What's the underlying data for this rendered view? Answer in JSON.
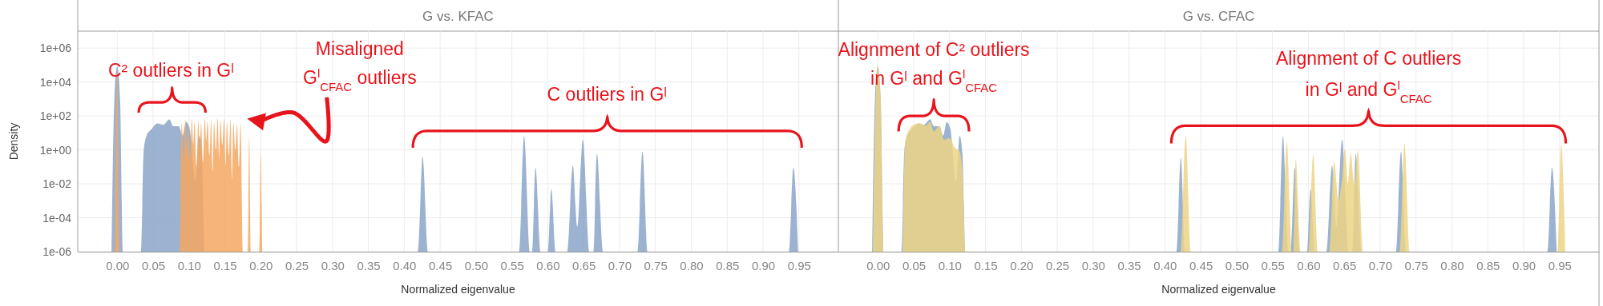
{
  "chart_data": [
    {
      "type": "area",
      "title": "G vs. KFAC",
      "xlabel": "Normalized eigenvalue",
      "ylabel": "Density",
      "log": "y",
      "grid": true,
      "xlim": [
        -0.055,
        1.005
      ],
      "ylim": [
        1e-06,
        10000000.0
      ],
      "xticks": [
        {
          "value": 0,
          "label": "0.00"
        },
        {
          "value": 0.05,
          "label": "0.05"
        },
        {
          "value": 0.1,
          "label": "0.10"
        },
        {
          "value": 0.15,
          "label": "0.15"
        },
        {
          "value": 0.2,
          "label": "0.20"
        },
        {
          "value": 0.25,
          "label": "0.25"
        },
        {
          "value": 0.3,
          "label": "0.30"
        },
        {
          "value": 0.35,
          "label": "0.35"
        },
        {
          "value": 0.4,
          "label": "0.40"
        },
        {
          "value": 0.45,
          "label": "0.45"
        },
        {
          "value": 0.5,
          "label": "0.50"
        },
        {
          "value": 0.55,
          "label": "0.55"
        },
        {
          "value": 0.6,
          "label": "0.60"
        },
        {
          "value": 0.65,
          "label": "0.65"
        },
        {
          "value": 0.7,
          "label": "0.70"
        },
        {
          "value": 0.75,
          "label": "0.75"
        },
        {
          "value": 0.8,
          "label": "0.80"
        },
        {
          "value": 0.85,
          "label": "0.85"
        },
        {
          "value": 0.9,
          "label": "0.90"
        },
        {
          "value": 0.95,
          "label": "0.95"
        }
      ],
      "yticks": [
        {
          "value": 1e-06,
          "label": "1e-06"
        },
        {
          "value": 0.0001,
          "label": "1e-04"
        },
        {
          "value": 0.01,
          "label": "1e-02"
        },
        {
          "value": 1,
          "label": "1e+00"
        },
        {
          "value": 100,
          "label": "1e+02"
        },
        {
          "value": 10000.0,
          "label": "1e+04"
        },
        {
          "value": 1000000.0,
          "label": "1e+06"
        }
      ],
      "series": [
        {
          "color": "#8aa6c9",
          "x": [
            -0.008,
            -0.004,
            0.0,
            0.004,
            0.008,
            0.033,
            0.037,
            0.041,
            0.048,
            0.056,
            0.064,
            0.073,
            0.078,
            0.086,
            0.091,
            0.096,
            0.101,
            0.109,
            0.114,
            0.118,
            0.122,
            0.419,
            0.4256,
            0.433,
            0.56,
            0.567,
            0.575,
            0.578,
            0.583,
            0.59,
            0.6,
            0.605,
            0.611,
            0.627,
            0.635,
            0.641,
            0.649,
            0.658,
            0.6635,
            0.6685,
            0.677,
            0.725,
            0.732,
            0.739,
            0.936,
            0.9423,
            0.949
          ],
          "values": [
            1e-06,
            1000,
            85000,
            1000,
            1e-06,
            1e-06,
            1,
            7,
            17,
            36,
            30,
            62,
            25,
            25,
            7,
            44,
            18,
            0.013,
            7,
            0.5,
            1e-06,
            1e-06,
            0.4,
            1e-06,
            1e-06,
            6.6,
            1e-06,
            1e-06,
            0.09,
            1e-06,
            1e-06,
            0.005,
            1e-06,
            1e-06,
            0.12,
            3e-05,
            4,
            1e-06,
            1e-06,
            0.6,
            1e-06,
            1e-06,
            0.8,
            1e-06,
            1e-06,
            0.09,
            1e-06
          ]
        },
        {
          "color": "#f4a760",
          "x": [
            -0.003,
            0.0,
            0.003,
            0.087,
            0.09,
            0.0925,
            0.095,
            0.097,
            0.099,
            0.1015,
            0.104,
            0.106,
            0.108,
            0.1105,
            0.113,
            0.115,
            0.117,
            0.1195,
            0.122,
            0.124,
            0.126,
            0.1285,
            0.131,
            0.133,
            0.135,
            0.1375,
            0.14,
            0.142,
            0.144,
            0.1465,
            0.149,
            0.151,
            0.153,
            0.1555,
            0.158,
            0.16,
            0.162,
            0.1645,
            0.167,
            0.1695,
            0.172,
            0.175,
            0.182,
            0.184,
            0.186,
            0.198,
            0.2,
            0.202
          ],
          "values": [
            1e-06,
            60000,
            1e-06,
            1e-06,
            40,
            0.5,
            60,
            1,
            30,
            0.3,
            70,
            2,
            45,
            0.1,
            55,
            1,
            35,
            0.2,
            80,
            3,
            50,
            0.5,
            65,
            0.05,
            40,
            1,
            75,
            0.3,
            55,
            2,
            70,
            0.1,
            45,
            0.5,
            60,
            0.02,
            40,
            1,
            30,
            0.1,
            35,
            1e-06,
            1e-06,
            6,
            1e-06,
            1e-06,
            0.7,
            1e-06
          ]
        }
      ],
      "annotations": [
        "C² outliers in Gˡ",
        "Misaligned",
        "G$^{l}$$_{CFAC}$ outliers",
        "C outliers in Gˡ"
      ]
    },
    {
      "type": "area",
      "title": "G vs. CFAC",
      "xlabel": "Normalized eigenvalue",
      "log": "y",
      "grid": true,
      "tick_labels": "x",
      "xlim": [
        -0.055,
        1.005
      ],
      "ylim": [
        1e-06,
        10000000.0
      ],
      "xticks": [
        {
          "value": 0,
          "label": "0.00"
        },
        {
          "value": 0.05,
          "label": "0.05"
        },
        {
          "value": 0.1,
          "label": "0.10"
        },
        {
          "value": 0.15,
          "label": "0.15"
        },
        {
          "value": 0.2,
          "label": "0.20"
        },
        {
          "value": 0.25,
          "label": "0.25"
        },
        {
          "value": 0.3,
          "label": "0.30"
        },
        {
          "value": 0.35,
          "label": "0.35"
        },
        {
          "value": 0.4,
          "label": "0.40"
        },
        {
          "value": 0.45,
          "label": "0.45"
        },
        {
          "value": 0.5,
          "label": "0.50"
        },
        {
          "value": 0.55,
          "label": "0.55"
        },
        {
          "value": 0.6,
          "label": "0.60"
        },
        {
          "value": 0.65,
          "label": "0.65"
        },
        {
          "value": 0.7,
          "label": "0.70"
        },
        {
          "value": 0.75,
          "label": "0.75"
        },
        {
          "value": 0.8,
          "label": "0.80"
        },
        {
          "value": 0.85,
          "label": "0.85"
        },
        {
          "value": 0.9,
          "label": "0.90"
        },
        {
          "value": 0.95,
          "label": "0.95"
        }
      ],
      "yticks": [
        {
          "value": 1e-06,
          "label": null
        },
        {
          "value": 0.0001,
          "label": null
        },
        {
          "value": 0.01,
          "label": null
        },
        {
          "value": 1,
          "label": null
        },
        {
          "value": 100,
          "label": null
        },
        {
          "value": 10000.0,
          "label": null
        },
        {
          "value": 1000000.0,
          "label": null
        }
      ],
      "series": [
        {
          "color": "#8aa6c9",
          "x": [
            -0.008,
            -0.004,
            0.0,
            0.004,
            0.008,
            0.033,
            0.037,
            0.041,
            0.048,
            0.056,
            0.064,
            0.073,
            0.078,
            0.086,
            0.091,
            0.096,
            0.101,
            0.109,
            0.114,
            0.118,
            0.122,
            0.416,
            0.4223,
            0.428,
            0.558,
            0.5646,
            0.572,
            0.575,
            0.581,
            0.588,
            0.598,
            0.603,
            0.609,
            0.625,
            0.633,
            0.639,
            0.647,
            0.656,
            0.661,
            0.666,
            0.674,
            0.722,
            0.729,
            0.736,
            0.933,
            0.9395,
            0.946
          ],
          "values": [
            1e-06,
            1000,
            85000,
            1000,
            1e-06,
            1e-06,
            1,
            7,
            17,
            36,
            30,
            62,
            25,
            25,
            7,
            44,
            18,
            0.013,
            7,
            0.5,
            1e-06,
            1e-06,
            0.33,
            1e-06,
            1e-06,
            6.6,
            1e-06,
            1e-06,
            0.09,
            1e-06,
            1e-06,
            0.005,
            1e-06,
            1e-06,
            0.12,
            3e-05,
            4,
            1e-06,
            1e-06,
            0.6,
            1e-06,
            1e-06,
            0.8,
            1e-06,
            1e-06,
            0.09,
            1e-06
          ]
        },
        {
          "color": "#ecd386",
          "x": [
            -0.007,
            -0.003,
            0.0,
            0.004,
            0.008,
            0.034,
            0.038,
            0.0445,
            0.05,
            0.059,
            0.067,
            0.073,
            0.078,
            0.086,
            0.092,
            0.1,
            0.107,
            0.114,
            0.118,
            0.122,
            0.422,
            0.429,
            0.436,
            0.563,
            0.57,
            0.577,
            0.579,
            0.5825,
            0.589,
            0.6,
            0.6067,
            0.613,
            0.629,
            0.636,
            0.642,
            0.646,
            0.651,
            0.655,
            0.659,
            0.664,
            0.669,
            0.676,
            0.727,
            0.734,
            0.741,
            0.947,
            0.9523,
            0.958
          ],
          "values": [
            1e-06,
            1000,
            85000,
            1000,
            1e-06,
            1e-06,
            3,
            17,
            30,
            36,
            27,
            45,
            12,
            27,
            4,
            5,
            1.4,
            0.8,
            0.05,
            1e-06,
            1e-06,
            7,
            1e-06,
            1e-06,
            2.9,
            1e-06,
            1e-06,
            0.28,
            1e-06,
            1e-06,
            0.5,
            1e-06,
            1e-06,
            0.2,
            0.001,
            0.01,
            1.2,
            0.01,
            0.6,
            0.01,
            0.9,
            1e-06,
            1e-06,
            2.4,
            1e-06,
            1e-06,
            2,
            1e-06
          ]
        }
      ],
      "annotations": [
        "Alignment of C² outliers",
        "in Gˡ and G$^{l}$$_{CFAC}$",
        "Alignment of C outliers",
        "in Gˡ and G$^{l}$$_{CFAC}$"
      ]
    }
  ]
}
